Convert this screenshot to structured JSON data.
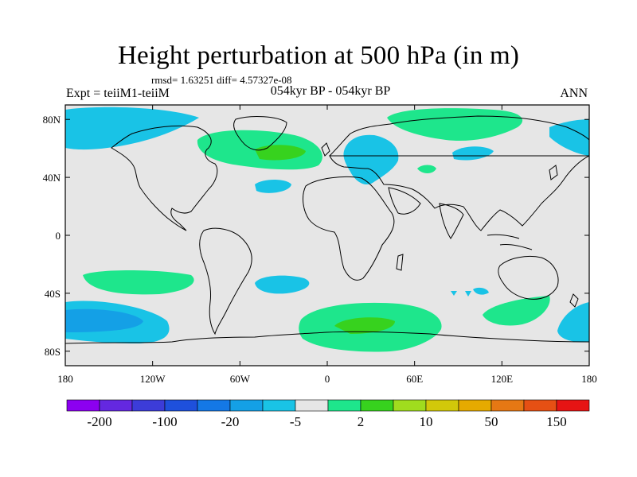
{
  "title": "Height perturbation at 500 hPa (in m)",
  "stats": "rmsd= 1.63251 diff= 4.57327e-08",
  "experiment": "Expt = teiiM1-teiiM",
  "period": "054kyr BP - 054kyr BP",
  "season": "ANN",
  "lon_ticks": [
    "180",
    "120W",
    "60W",
    "0",
    "60E",
    "120E",
    "180"
  ],
  "lat_ticks": [
    "80N",
    "40N",
    "0",
    "40S",
    "80S"
  ],
  "colorbar": {
    "colors": [
      "#8c00f0",
      "#6428e0",
      "#3c3cd8",
      "#1e50dc",
      "#1478e6",
      "#14a0e6",
      "#19c3e6",
      "#e6e6e6",
      "#1ee68c",
      "#37d21e",
      "#a0dc1e",
      "#d2c80a",
      "#e6aa00",
      "#e67814",
      "#e65014",
      "#e61414"
    ],
    "labels": [
      "-200",
      "-100",
      "-20",
      "-5",
      "2",
      "10",
      "50",
      "150"
    ]
  },
  "fill_colors": {
    "background": "#e6e6e6",
    "neg_light": "#19c3e6",
    "neg_mid": "#14a0e6",
    "pos_light": "#1ee68c",
    "pos_mid": "#37d21e"
  }
}
